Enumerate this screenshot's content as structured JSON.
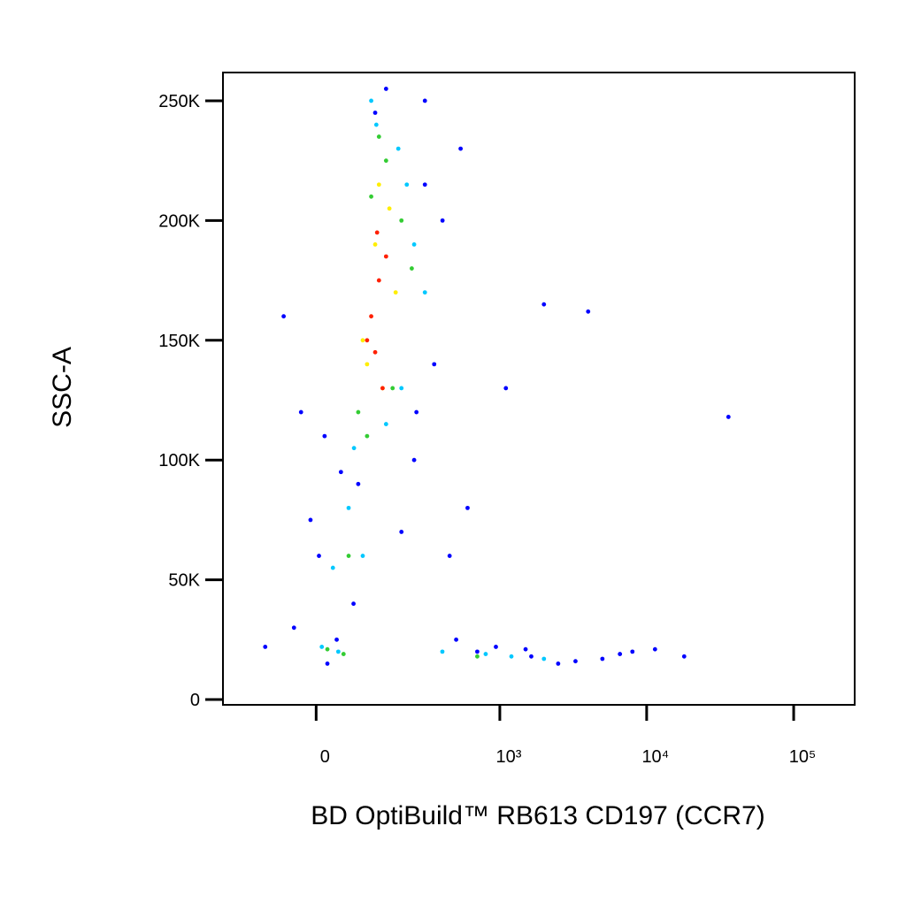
{
  "chart_data": {
    "type": "scatter",
    "x_label": "BD OptiBuild™ RB613 CD197 (CCR7)",
    "y_label": "SSC-A",
    "xscale": "biexponential",
    "xlim": [
      -230,
      260000
    ],
    "ylim": [
      -2200,
      261800
    ],
    "xticks": [
      0,
      {
        "value": 1000,
        "label": "10³"
      },
      {
        "value": 10000,
        "label": "10⁴"
      },
      {
        "value": 100000,
        "label": "10⁵"
      }
    ],
    "yticks": [
      0,
      {
        "value": 50000,
        "label": "50K"
      },
      {
        "value": 100000,
        "label": "100K"
      },
      {
        "value": 150000,
        "label": "150K"
      },
      {
        "value": 200000,
        "label": "200K"
      },
      {
        "value": 250000,
        "label": "250K"
      }
    ],
    "series": [
      {
        "color": "#0000ff",
        "x": [
          -60,
          -27,
          5,
          37,
          300,
          401,
          537,
          -40,
          20,
          250,
          450,
          700,
          1640,
          3280,
          6580,
          11400,
          18000,
          940,
          2000,
          4000,
          36000,
          1100,
          600,
          15,
          -100,
          80,
          150,
          350,
          200,
          70,
          2500,
          8000,
          500,
          300,
          45,
          -10,
          120,
          260,
          1500,
          5000
        ],
        "values": [
          160000,
          120000,
          60000,
          25000,
          250000,
          200000,
          230000,
          30000,
          15000,
          100000,
          60000,
          20000,
          18000,
          16000,
          19000,
          21000,
          18000,
          22000,
          165000,
          162000,
          118000,
          130000,
          80000,
          110000,
          22000,
          90000,
          255000,
          140000,
          70000,
          40000,
          15000,
          20000,
          25000,
          215000,
          95000,
          75000,
          245000,
          120000,
          21000,
          17000
        ]
      },
      {
        "color": "#00c8ff",
        "x": [
          10,
          40,
          71,
          123,
          189,
          250,
          30,
          90,
          200,
          300,
          400,
          1200,
          2000,
          60,
          150,
          220,
          110,
          800
        ],
        "values": [
          22000,
          20000,
          105000,
          240000,
          230000,
          190000,
          55000,
          60000,
          130000,
          170000,
          20000,
          18000,
          17000,
          80000,
          115000,
          215000,
          250000,
          19000
        ]
      },
      {
        "color": "#33cc33",
        "x": [
          20,
          50,
          80,
          110,
          150,
          200,
          60,
          100,
          170,
          240,
          700,
          130
        ],
        "values": [
          21000,
          19000,
          120000,
          210000,
          225000,
          200000,
          60000,
          110000,
          130000,
          180000,
          18000,
          235000
        ]
      },
      {
        "color": "#ffee00",
        "x": [
          90,
          120,
          140,
          180,
          160,
          100,
          130
        ],
        "values": [
          150000,
          190000,
          130000,
          170000,
          205000,
          140000,
          215000
        ]
      },
      {
        "color": "#ff2000",
        "x": [
          110,
          130,
          120,
          150,
          100,
          140,
          125
        ],
        "values": [
          160000,
          175000,
          145000,
          185000,
          150000,
          130000,
          195000
        ]
      }
    ]
  }
}
